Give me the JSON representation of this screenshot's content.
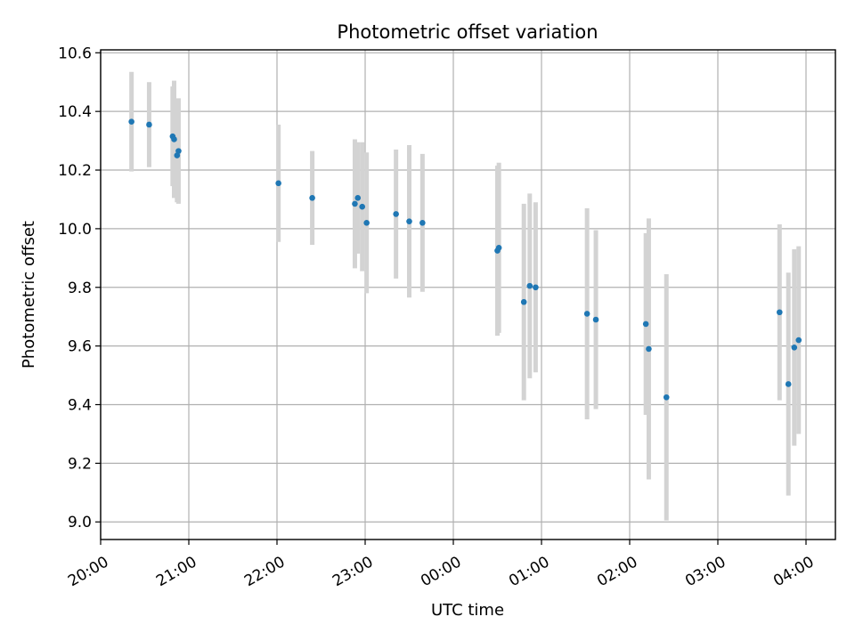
{
  "chart_data": {
    "type": "scatter",
    "title": "Photometric offset variation",
    "xlabel": "UTC time",
    "ylabel": "Photometric offset",
    "x_unit": "UTC",
    "xlim": [
      "20:00",
      "04:20"
    ],
    "ylim": [
      8.94,
      10.61
    ],
    "x_ticks": [
      "20:00",
      "21:00",
      "22:00",
      "23:00",
      "00:00",
      "01:00",
      "02:00",
      "03:00",
      "04:00"
    ],
    "y_ticks": [
      9.0,
      9.2,
      9.4,
      9.6,
      9.8,
      10.0,
      10.2,
      10.4,
      10.6
    ],
    "y_tick_labels": [
      "9.0",
      "9.2",
      "9.4",
      "9.6",
      "9.8",
      "10.0",
      "10.2",
      "10.4",
      "10.6"
    ],
    "grid": true,
    "colors": {
      "marker": "#1f77b4",
      "errorbar": "#d3d3d3",
      "grid": "#b0b0b0"
    },
    "points": [
      {
        "time": "20:21",
        "y": 10.365,
        "yerr": 0.17
      },
      {
        "time": "20:33",
        "y": 10.355,
        "yerr": 0.145
      },
      {
        "time": "20:49",
        "y": 10.315,
        "yerr": 0.17
      },
      {
        "time": "20:50",
        "y": 10.305,
        "yerr": 0.2
      },
      {
        "time": "20:52",
        "y": 10.25,
        "yerr": 0.16
      },
      {
        "time": "20:53",
        "y": 10.265,
        "yerr": 0.18
      },
      {
        "time": "22:01",
        "y": 10.155,
        "yerr": 0.2
      },
      {
        "time": "22:24",
        "y": 10.105,
        "yerr": 0.16
      },
      {
        "time": "22:53",
        "y": 10.085,
        "yerr": 0.22
      },
      {
        "time": "22:55",
        "y": 10.105,
        "yerr": 0.19
      },
      {
        "time": "22:58",
        "y": 10.075,
        "yerr": 0.22
      },
      {
        "time": "23:01",
        "y": 10.02,
        "yerr": 0.24
      },
      {
        "time": "23:21",
        "y": 10.05,
        "yerr": 0.22
      },
      {
        "time": "23:30",
        "y": 10.025,
        "yerr": 0.26
      },
      {
        "time": "23:39",
        "y": 10.02,
        "yerr": 0.235
      },
      {
        "time": "00:30",
        "y": 9.925,
        "yerr": 0.29
      },
      {
        "time": "00:31",
        "y": 9.935,
        "yerr": 0.29
      },
      {
        "time": "00:48",
        "y": 9.75,
        "yerr": 0.335
      },
      {
        "time": "00:52",
        "y": 9.805,
        "yerr": 0.315
      },
      {
        "time": "00:56",
        "y": 9.8,
        "yerr": 0.29
      },
      {
        "time": "01:31",
        "y": 9.71,
        "yerr": 0.36
      },
      {
        "time": "01:37",
        "y": 9.69,
        "yerr": 0.305
      },
      {
        "time": "02:11",
        "y": 9.675,
        "yerr": 0.31
      },
      {
        "time": "02:13",
        "y": 9.59,
        "yerr": 0.445
      },
      {
        "time": "02:25",
        "y": 9.425,
        "yerr": 0.42
      },
      {
        "time": "03:42",
        "y": 9.715,
        "yerr": 0.3
      },
      {
        "time": "03:48",
        "y": 9.47,
        "yerr": 0.38
      },
      {
        "time": "03:52",
        "y": 9.595,
        "yerr": 0.335
      },
      {
        "time": "03:55",
        "y": 9.62,
        "yerr": 0.32
      }
    ]
  }
}
